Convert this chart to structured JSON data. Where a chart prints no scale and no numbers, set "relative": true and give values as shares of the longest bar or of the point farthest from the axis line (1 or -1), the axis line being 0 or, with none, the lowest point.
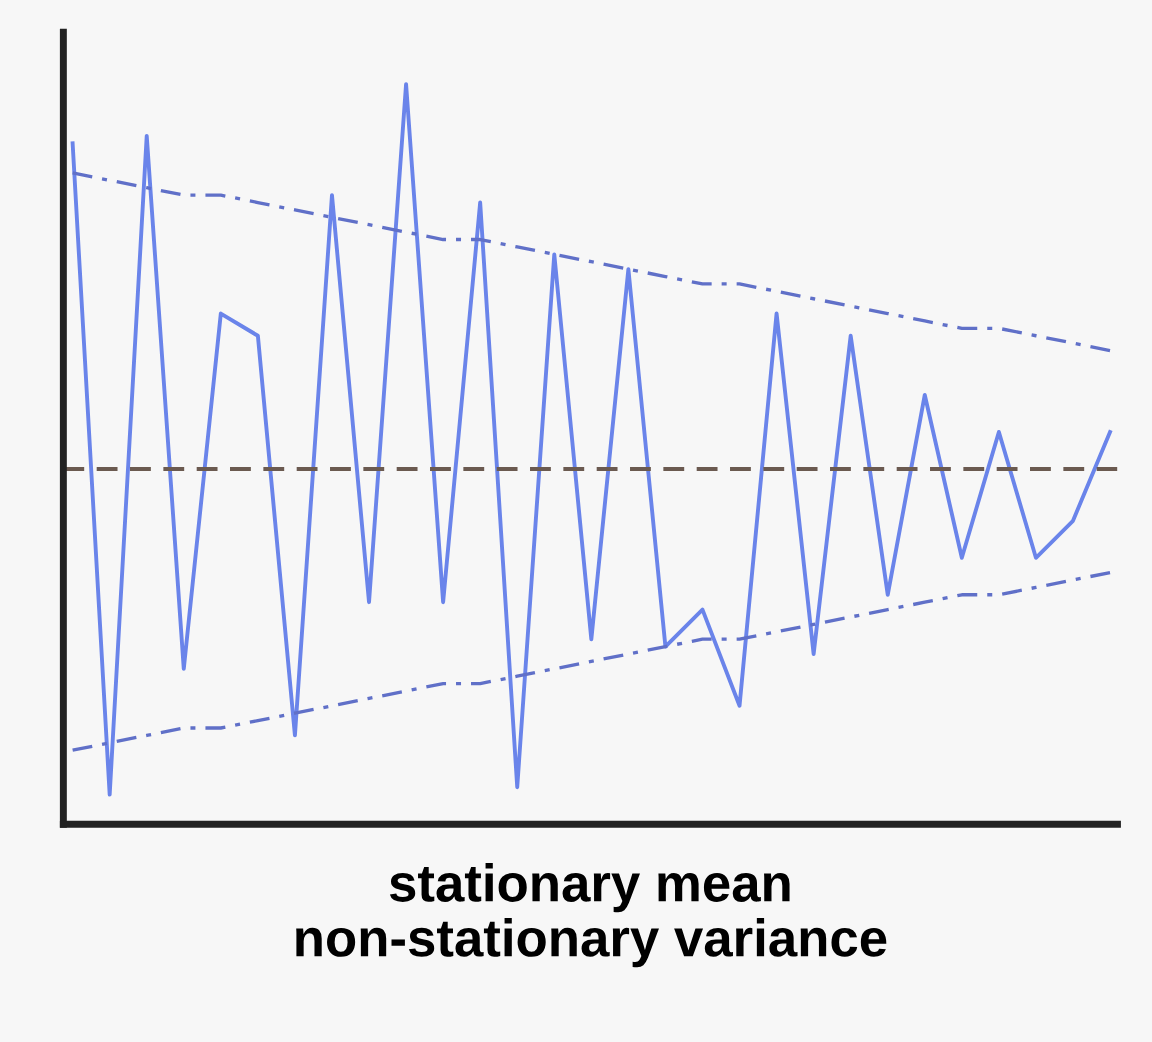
{
  "chart_data": {
    "type": "line",
    "relative": true,
    "xlabel": "stationary mean\nnon-stationary variance",
    "categories": [
      null,
      null,
      null,
      null,
      null,
      null,
      null,
      null,
      null,
      null,
      null,
      null,
      null,
      null,
      null,
      null,
      null,
      null,
      null,
      null,
      null,
      null,
      null,
      null,
      null,
      null,
      null,
      null,
      null
    ],
    "series": [
      {
        "color": "#6a84ea",
        "line_style": "solid",
        "values": [
          0.92,
          0.04,
          0.93,
          0.21,
          0.69,
          0.66,
          0.12,
          0.85,
          0.3,
          1.0,
          0.3,
          0.84,
          0.05,
          0.77,
          0.25,
          0.75,
          0.24,
          0.29,
          0.16,
          0.69,
          0.23,
          0.66,
          0.31,
          0.58,
          0.36,
          0.53,
          0.36,
          0.41,
          0.53
        ]
      },
      {
        "color": "#6070c8",
        "line_style": "dashed",
        "values": [
          0.88,
          0.87,
          0.86,
          0.85,
          0.85,
          0.84,
          0.83,
          0.82,
          0.81,
          0.8,
          0.79,
          0.79,
          0.78,
          0.77,
          0.76,
          0.75,
          0.74,
          0.73,
          0.73,
          0.72,
          0.71,
          0.7,
          0.69,
          0.68,
          0.67,
          0.67,
          0.66,
          0.65,
          0.64
        ]
      },
      {
        "color": "#6070c8",
        "line_style": "dashed",
        "values": [
          0.1,
          0.11,
          0.12,
          0.13,
          0.13,
          0.14,
          0.15,
          0.16,
          0.17,
          0.18,
          0.19,
          0.19,
          0.2,
          0.21,
          0.22,
          0.23,
          0.24,
          0.25,
          0.25,
          0.26,
          0.27,
          0.28,
          0.29,
          0.3,
          0.31,
          0.31,
          0.32,
          0.33,
          0.34
        ]
      }
    ],
    "ref_lines": [
      {
        "axis": "y",
        "value": 0.48,
        "color": "#6b5a50",
        "line_style": "dashed"
      }
    ],
    "grid": false,
    "tick_labels": false,
    "marker": "none"
  }
}
